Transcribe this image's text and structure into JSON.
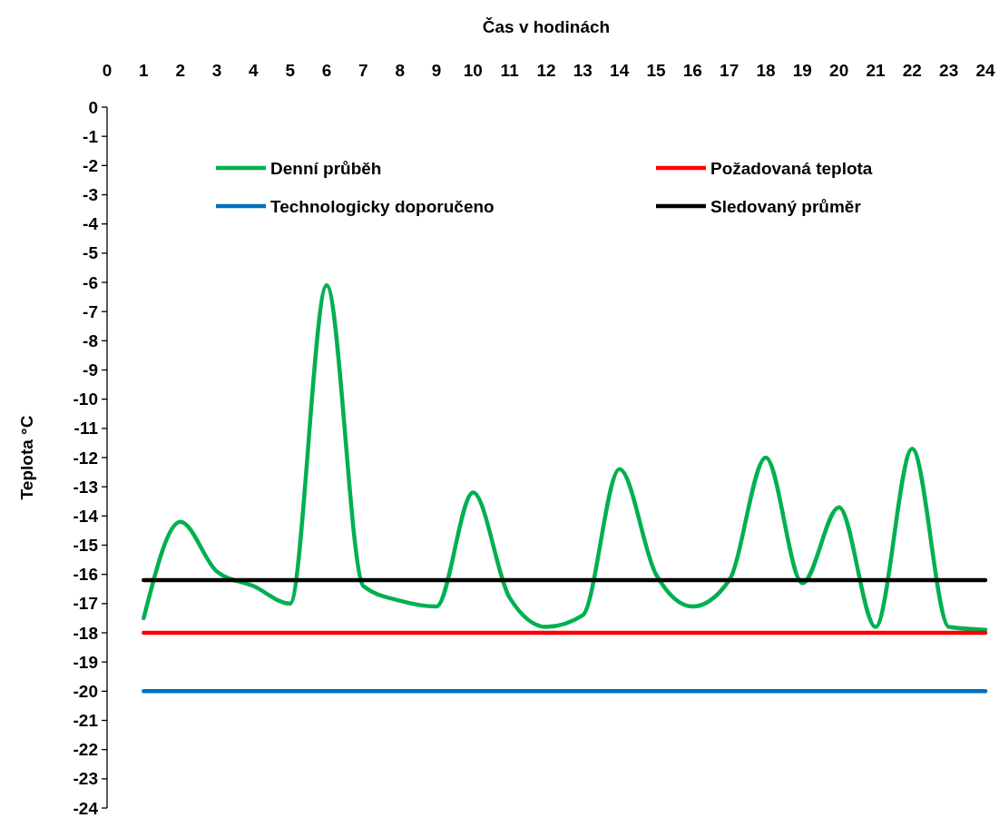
{
  "chart_data": {
    "type": "line",
    "xlabel": "Čas v hodinách",
    "ylabel": "Teplota °C",
    "xlim": [
      0,
      24
    ],
    "xticks": [
      0,
      1,
      2,
      3,
      4,
      5,
      6,
      7,
      8,
      9,
      10,
      11,
      12,
      13,
      14,
      15,
      16,
      17,
      18,
      19,
      20,
      21,
      22,
      23,
      24
    ],
    "ylim": [
      -24,
      0
    ],
    "yticks": [
      0,
      -1,
      -2,
      -3,
      -4,
      -5,
      -6,
      -7,
      -8,
      -9,
      -10,
      -11,
      -12,
      -13,
      -14,
      -15,
      -16,
      -17,
      -18,
      -19,
      -20,
      -21,
      -22,
      -23,
      -24
    ],
    "series": [
      {
        "name": "Denní průběh",
        "color": "#00b050",
        "x": [
          1,
          2,
          3,
          4,
          5,
          6,
          7,
          8,
          9,
          10,
          11,
          12,
          13,
          14,
          15,
          16,
          17,
          18,
          19,
          20,
          21,
          22,
          23,
          24
        ],
        "values": [
          -17.5,
          -14.2,
          -15.9,
          -16.4,
          -17.0,
          -6.1,
          -16.4,
          -16.9,
          -17.1,
          -13.2,
          -16.8,
          -17.8,
          -17.4,
          -12.4,
          -16.0,
          -17.1,
          -16.2,
          -12.0,
          -16.3,
          -13.7,
          -17.8,
          -11.7,
          -17.8,
          -17.9
        ]
      },
      {
        "name": "Požadovaná teplota",
        "color": "#ff0000",
        "x": [
          1,
          24
        ],
        "values": [
          -18,
          -18
        ]
      },
      {
        "name": "Technologicky doporučeno",
        "color": "#0070c0",
        "x": [
          1,
          24
        ],
        "values": [
          -20,
          -20
        ]
      },
      {
        "name": "Sledovaný průměr",
        "color": "#000000",
        "x": [
          1,
          24
        ],
        "values": [
          -16.2,
          -16.2
        ]
      }
    ],
    "legend": "top",
    "grid": false,
    "marker": "none",
    "line_style": "solid"
  }
}
